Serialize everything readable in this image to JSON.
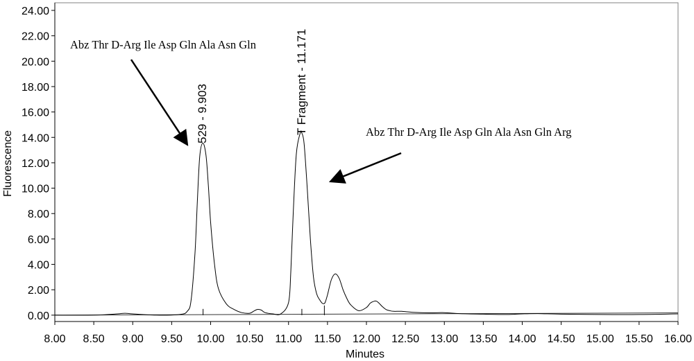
{
  "chart_data": {
    "type": "line",
    "xlabel": "Minutes",
    "ylabel": "Fluorescence",
    "xlim": [
      8.0,
      16.0
    ],
    "ylim": [
      -0.5,
      24.6
    ],
    "x_ticks": [
      "8.00",
      "8.50",
      "9.00",
      "9.50",
      "10.00",
      "10.50",
      "11.00",
      "11.50",
      "12.00",
      "12.50",
      "13.00",
      "13.50",
      "14.00",
      "14.50",
      "15.00",
      "15.50",
      "16.00"
    ],
    "y_ticks": [
      "0.00",
      "2.00",
      "4.00",
      "6.00",
      "8.00",
      "10.00",
      "12.00",
      "14.00",
      "16.00",
      "18.00",
      "20.00",
      "22.00",
      "24.00"
    ],
    "grid": false,
    "series": [
      {
        "x": [
          8.0,
          8.5,
          8.8,
          8.9,
          9.0,
          9.3,
          9.6,
          9.7,
          9.75,
          9.8,
          9.83,
          9.86,
          9.9,
          9.94,
          9.97,
          10.0,
          10.05,
          10.1,
          10.2,
          10.3,
          10.4,
          10.5,
          10.55,
          10.6,
          10.65,
          10.7,
          10.8,
          10.9,
          11.0,
          11.03,
          11.06,
          11.1,
          11.15,
          11.17,
          11.2,
          11.24,
          11.28,
          11.32,
          11.36,
          11.4,
          11.43,
          11.45,
          11.47,
          11.5,
          11.55,
          11.6,
          11.65,
          11.7,
          11.75,
          11.8,
          11.9,
          12.0,
          12.05,
          12.1,
          12.13,
          12.16,
          12.2,
          12.25,
          12.3,
          12.35,
          12.45,
          12.6,
          12.8,
          13.0,
          13.2,
          13.5,
          13.8,
          14.0,
          14.2,
          14.5,
          15.0,
          15.5,
          16.0
        ],
        "y": [
          0.0,
          0.0,
          0.1,
          0.15,
          0.1,
          0.0,
          0.05,
          0.3,
          1.2,
          5.0,
          9.0,
          12.5,
          13.55,
          12.6,
          10.3,
          7.3,
          4.0,
          2.1,
          0.9,
          0.45,
          0.2,
          0.15,
          0.3,
          0.45,
          0.4,
          0.2,
          0.1,
          0.1,
          1.0,
          3.5,
          8.0,
          12.7,
          14.35,
          14.35,
          13.5,
          10.0,
          6.0,
          3.0,
          1.7,
          1.2,
          0.95,
          0.9,
          1.0,
          1.6,
          2.8,
          3.25,
          2.9,
          2.0,
          1.3,
          0.8,
          0.35,
          0.6,
          0.95,
          1.1,
          1.1,
          0.95,
          0.7,
          0.45,
          0.35,
          0.3,
          0.3,
          0.22,
          0.18,
          0.2,
          0.12,
          0.08,
          0.05,
          0.1,
          0.12,
          0.08,
          0.05,
          0.05,
          0.1
        ]
      }
    ],
    "annotations": {
      "peak1_label": "529 - 9.903",
      "peak2_label": "T Fragment - 11.171",
      "callout1": "Abz Thr D-Arg Ile Asp Gln Ala Asn Gln",
      "callout2": "Abz Thr D-Arg Ile Asp Gln Ala Asn Gln Arg"
    }
  }
}
